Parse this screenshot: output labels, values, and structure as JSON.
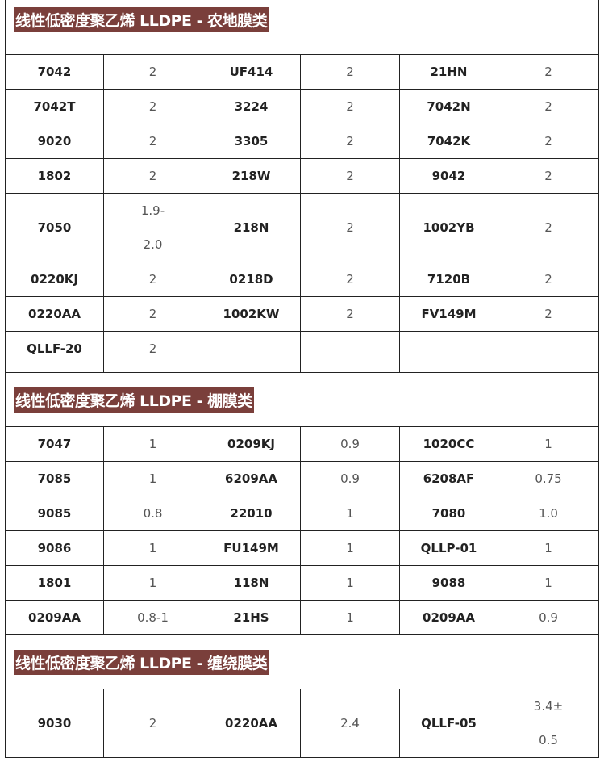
{
  "sections": [
    {
      "title": "线性低密度聚乙烯  LLDPE - 农地膜类",
      "rows": [
        [
          "7042",
          "2",
          "UF414",
          "2",
          "21HN",
          "2"
        ],
        [
          "7042T",
          "2",
          "3224",
          "2",
          "7042N",
          "2"
        ],
        [
          "9020",
          "2",
          "3305",
          "2",
          "7042K",
          "2"
        ],
        [
          "1802",
          "2",
          "218W",
          "2",
          "9042",
          "2"
        ],
        [
          "7050",
          "1.9-\n2.0",
          "218N",
          "2",
          "1002YB",
          "2"
        ],
        [
          "0220KJ",
          "2",
          "0218D",
          "2",
          "7120B",
          "2"
        ],
        [
          "0220AA",
          "2",
          "1002KW",
          "2",
          "FV149M",
          "2"
        ],
        [
          "QLLF-20",
          "2",
          "",
          "",
          "",
          ""
        ]
      ]
    },
    {
      "title": "线性低密度聚乙烯  LLDPE - 棚膜类",
      "rows": [
        [
          "7047",
          "1",
          "0209KJ",
          "0.9",
          "1020CC",
          "1"
        ],
        [
          "7085",
          "1",
          "6209AA",
          "0.9",
          "6208AF",
          "0.75"
        ],
        [
          "9085",
          "0.8",
          "22010",
          "1",
          "7080",
          "1.0"
        ],
        [
          "9086",
          "1",
          "FU149M",
          "1",
          "QLLP-01",
          "1"
        ],
        [
          "1801",
          "1",
          "118N",
          "1",
          "9088",
          "1"
        ],
        [
          "0209AA",
          "0.8-1",
          "21HS",
          "1",
          "0209AA",
          "0.9"
        ]
      ]
    },
    {
      "title": "线性低密度聚乙烯  LLDPE - 缠绕膜类",
      "rows": [
        [
          "9030",
          "2",
          "0220AA",
          "2.4",
          "QLLF-05",
          "3.4±\n0.5"
        ]
      ]
    }
  ],
  "colors": {
    "banner_bg": "#7a3f3b",
    "banner_text": "#ffffff",
    "border": "#222222"
  }
}
